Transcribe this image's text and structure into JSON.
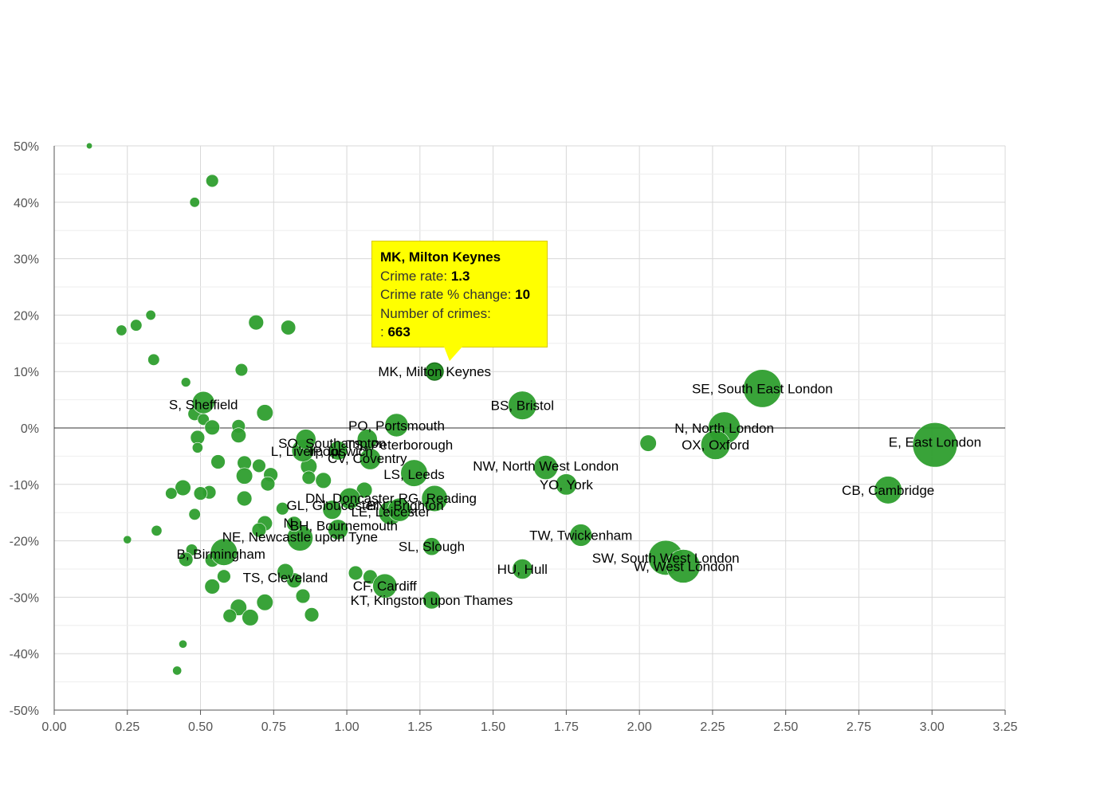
{
  "chart_data": {
    "type": "scatter",
    "variant": "bubble",
    "title": "",
    "xlabel": "",
    "ylabel": "",
    "xlim": [
      0,
      3.25
    ],
    "ylim": [
      -50,
      50
    ],
    "x_ticks": [
      "0.00",
      "0.25",
      "0.50",
      "0.75",
      "1.00",
      "1.25",
      "1.50",
      "1.75",
      "2.00",
      "2.25",
      "2.50",
      "2.75",
      "3.00",
      "3.25"
    ],
    "y_ticks": [
      "50%",
      "40%",
      "30%",
      "20%",
      "10%",
      "0%",
      "-10%",
      "-20%",
      "-30%",
      "-40%",
      "-50%"
    ],
    "grid": true,
    "point_color": "#2e9e2e",
    "highlight_color": "#1b8a1b",
    "labeled_points": [
      {
        "label": "MK, Milton Keynes",
        "x": 1.3,
        "y": 10,
        "size": 663
      },
      {
        "label": "SE, South East London",
        "x": 2.42,
        "y": 7,
        "size": 3200
      },
      {
        "label": "E, East London",
        "x": 3.01,
        "y": -3,
        "size": 4400
      },
      {
        "label": "N, North London",
        "x": 2.29,
        "y": 0,
        "size": 2300
      },
      {
        "label": "OX, Oxford",
        "x": 2.26,
        "y": -3,
        "size": 1900
      },
      {
        "label": "CB, Cambridge",
        "x": 2.85,
        "y": -11,
        "size": 1700
      },
      {
        "label": "BS, Bristol",
        "x": 1.6,
        "y": 4,
        "size": 1800
      },
      {
        "label": "NW, North West London",
        "x": 1.68,
        "y": -7,
        "size": 1300
      },
      {
        "label": "YO, York",
        "x": 1.75,
        "y": -10,
        "size": 1000
      },
      {
        "label": "TW, Twickenham",
        "x": 1.8,
        "y": -19,
        "size": 1100
      },
      {
        "label": "SW, South West London",
        "x": 2.09,
        "y": -23,
        "size": 2700
      },
      {
        "label": "W, West London",
        "x": 2.15,
        "y": -24.5,
        "size": 2500
      },
      {
        "label": "HU, Hull",
        "x": 1.6,
        "y": -25,
        "size": 900
      },
      {
        "label": "SL, Slough",
        "x": 1.29,
        "y": -21,
        "size": 700
      },
      {
        "label": "KT, Kingston upon Thames",
        "x": 1.29,
        "y": -30.5,
        "size": 700
      },
      {
        "label": "CF, Cardiff",
        "x": 1.13,
        "y": -28,
        "size": 1300
      },
      {
        "label": "TS, Cleveland",
        "x": 0.79,
        "y": -25.5,
        "size": 600
      },
      {
        "label": "B, Birmingham",
        "x": 0.58,
        "y": -22,
        "size": 1600
      },
      {
        "label": "NE, Newcastle upon Tyne",
        "x": 0.84,
        "y": -19.5,
        "size": 1500
      },
      {
        "label": "BH, Bournemouth",
        "x": 0.97,
        "y": -18,
        "size": 900
      },
      {
        "label": "N",
        "x": 0.82,
        "y": -17,
        "size": 500
      },
      {
        "label": "GL, Gloucester",
        "x": 0.95,
        "y": -14.5,
        "size": 800
      },
      {
        "label": "BN, Brighton",
        "x": 1.18,
        "y": -14.5,
        "size": 1200
      },
      {
        "label": "LE, Leicester",
        "x": 1.15,
        "y": -15,
        "size": 1300
      },
      {
        "label": "DN, Doncaster",
        "x": 1.01,
        "y": -12.5,
        "size": 1000
      },
      {
        "label": "RG, Reading",
        "x": 1.3,
        "y": -12.5,
        "size": 1500
      },
      {
        "label": "LS, Leeds",
        "x": 1.23,
        "y": -8,
        "size": 1600
      },
      {
        "label": "L, Liverpool",
        "x": 0.85,
        "y": -4,
        "size": 1100
      },
      {
        "label": "IP, Ipswich",
        "x": 0.97,
        "y": -4,
        "size": 800
      },
      {
        "label": "CV, Coventry",
        "x": 1.08,
        "y": -5.5,
        "size": 1000
      },
      {
        "label": "SO, Southampton",
        "x": 0.86,
        "y": -2,
        "size": 900
      },
      {
        "label": "TS, Peterborough",
        "x": 1.07,
        "y": -2,
        "size": 900
      },
      {
        "label": "PO, Portsmouth",
        "x": 1.17,
        "y": 0.5,
        "size": 1200
      },
      {
        "label": "S, Sheffield",
        "x": 0.51,
        "y": 4.5,
        "size": 1100
      }
    ],
    "labels": [
      {
        "text": "MK, Milton Keynes",
        "x": 1.3,
        "y": 10
      },
      {
        "text": "SE, South East London",
        "x": 2.42,
        "y": 7
      },
      {
        "text": "E, East London",
        "x": 3.01,
        "y": -2.5
      },
      {
        "text": "N, North London",
        "x": 2.29,
        "y": 0
      },
      {
        "text": "OX, Oxford",
        "x": 2.26,
        "y": -3
      },
      {
        "text": "CB, Cambridge",
        "x": 2.85,
        "y": -11
      },
      {
        "text": "BS, Bristol",
        "x": 1.6,
        "y": 4
      },
      {
        "text": "NW, North West London",
        "x": 1.68,
        "y": -6.7
      },
      {
        "text": "YO, York",
        "x": 1.75,
        "y": -10
      },
      {
        "text": "TW, Twickenham",
        "x": 1.8,
        "y": -19
      },
      {
        "text": "SW, South West London",
        "x": 2.09,
        "y": -23
      },
      {
        "text": "W, West London",
        "x": 2.15,
        "y": -24.5
      },
      {
        "text": "HU, Hull",
        "x": 1.6,
        "y": -25
      },
      {
        "text": "SL, Slough",
        "x": 1.29,
        "y": -21
      },
      {
        "text": "KT, Kingston upon Thames",
        "x": 1.29,
        "y": -30.5
      },
      {
        "text": "CF, Cardiff",
        "x": 1.13,
        "y": -28
      },
      {
        "text": "TS, Cleveland",
        "x": 0.79,
        "y": -26.5
      },
      {
        "text": "B, Birmingham",
        "x": 0.57,
        "y": -22.3
      },
      {
        "text": "NE, Newcastle upon Tyne",
        "x": 0.84,
        "y": -19.3
      },
      {
        "text": "BH, Bournemouth",
        "x": 0.99,
        "y": -17.3
      },
      {
        "text": "N",
        "x": 0.8,
        "y": -16.8
      },
      {
        "text": "GL, Gloucester",
        "x": 0.95,
        "y": -13.7
      },
      {
        "text": "BN, Brighton",
        "x": 1.2,
        "y": -13.7
      },
      {
        "text": "LE, Leicester",
        "x": 1.15,
        "y": -14.8
      },
      {
        "text": "DN, Doncaster",
        "x": 1.01,
        "y": -12.4
      },
      {
        "text": "RG, Reading",
        "x": 1.31,
        "y": -12.4
      },
      {
        "text": "LS, Leeds",
        "x": 1.23,
        "y": -8.2
      },
      {
        "text": "L, Liverpool",
        "x": 0.86,
        "y": -4.1
      },
      {
        "text": "IP, Ipswich",
        "x": 0.98,
        "y": -4.1
      },
      {
        "text": "CV, Coventry",
        "x": 1.07,
        "y": -5.4
      },
      {
        "text": "SO, Southampton",
        "x": 0.95,
        "y": -2.7
      },
      {
        "text": "TS, Peterborough",
        "x": 1.18,
        "y": -3
      },
      {
        "text": "PO, Portsmouth",
        "x": 1.17,
        "y": 0.4
      },
      {
        "text": "S, Sheffield",
        "x": 0.51,
        "y": 4.2
      }
    ],
    "other_points": [
      {
        "x": 0.12,
        "y": 50,
        "size": 80
      },
      {
        "x": 0.54,
        "y": 43.8,
        "size": 350
      },
      {
        "x": 0.48,
        "y": 40,
        "size": 220
      },
      {
        "x": 0.23,
        "y": 17.3,
        "size": 250
      },
      {
        "x": 0.28,
        "y": 18.2,
        "size": 300
      },
      {
        "x": 0.33,
        "y": 20,
        "size": 220
      },
      {
        "x": 0.69,
        "y": 18.7,
        "size": 500
      },
      {
        "x": 0.8,
        "y": 17.8,
        "size": 480
      },
      {
        "x": 0.34,
        "y": 12.1,
        "size": 300
      },
      {
        "x": 0.64,
        "y": 10.3,
        "size": 350
      },
      {
        "x": 0.45,
        "y": 8.1,
        "size": 200
      },
      {
        "x": 0.48,
        "y": 2.5,
        "size": 400
      },
      {
        "x": 0.51,
        "y": 1.5,
        "size": 300
      },
      {
        "x": 0.54,
        "y": 0.1,
        "size": 500
      },
      {
        "x": 0.63,
        "y": 0.3,
        "size": 400
      },
      {
        "x": 0.72,
        "y": 2.7,
        "size": 600
      },
      {
        "x": 0.63,
        "y": -1.3,
        "size": 500
      },
      {
        "x": 0.49,
        "y": -1.7,
        "size": 450
      },
      {
        "x": 0.49,
        "y": -3.5,
        "size": 250
      },
      {
        "x": 0.56,
        "y": -6,
        "size": 450
      },
      {
        "x": 0.65,
        "y": -6.2,
        "size": 450
      },
      {
        "x": 0.7,
        "y": -6.7,
        "size": 400
      },
      {
        "x": 0.65,
        "y": -8.5,
        "size": 600
      },
      {
        "x": 0.74,
        "y": -8.3,
        "size": 450
      },
      {
        "x": 0.73,
        "y": -9.9,
        "size": 450
      },
      {
        "x": 0.87,
        "y": -6.8,
        "size": 600
      },
      {
        "x": 0.87,
        "y": -8.8,
        "size": 400
      },
      {
        "x": 0.92,
        "y": -9.3,
        "size": 550
      },
      {
        "x": 0.44,
        "y": -10.6,
        "size": 550
      },
      {
        "x": 0.53,
        "y": -11.4,
        "size": 400
      },
      {
        "x": 0.5,
        "y": -11.6,
        "size": 400
      },
      {
        "x": 0.4,
        "y": -11.6,
        "size": 300
      },
      {
        "x": 0.65,
        "y": -12.5,
        "size": 500
      },
      {
        "x": 0.48,
        "y": -15.3,
        "size": 300
      },
      {
        "x": 0.78,
        "y": -14.3,
        "size": 350
      },
      {
        "x": 1.06,
        "y": -11,
        "size": 550
      },
      {
        "x": 0.72,
        "y": -16.9,
        "size": 500
      },
      {
        "x": 0.7,
        "y": -18.1,
        "size": 450
      },
      {
        "x": 0.35,
        "y": -18.2,
        "size": 250
      },
      {
        "x": 0.25,
        "y": -19.8,
        "size": 150
      },
      {
        "x": 0.47,
        "y": -21.6,
        "size": 300
      },
      {
        "x": 0.45,
        "y": -23.3,
        "size": 450
      },
      {
        "x": 0.54,
        "y": -23.4,
        "size": 450
      },
      {
        "x": 0.58,
        "y": -26.3,
        "size": 400
      },
      {
        "x": 0.54,
        "y": -28.1,
        "size": 500
      },
      {
        "x": 0.82,
        "y": -27,
        "size": 500
      },
      {
        "x": 0.85,
        "y": -29.8,
        "size": 450
      },
      {
        "x": 0.88,
        "y": -33.1,
        "size": 450
      },
      {
        "x": 0.72,
        "y": -30.9,
        "size": 600
      },
      {
        "x": 0.63,
        "y": -31.8,
        "size": 600
      },
      {
        "x": 0.6,
        "y": -33.3,
        "size": 400
      },
      {
        "x": 0.67,
        "y": -33.6,
        "size": 600
      },
      {
        "x": 1.03,
        "y": -25.7,
        "size": 450
      },
      {
        "x": 1.08,
        "y": -26.4,
        "size": 450
      },
      {
        "x": 2.03,
        "y": -2.7,
        "size": 600
      },
      {
        "x": 0.44,
        "y": -38.3,
        "size": 150
      },
      {
        "x": 0.42,
        "y": -43,
        "size": 180
      }
    ]
  },
  "tooltip": {
    "title": "MK, Milton Keynes",
    "rate_label": "Crime rate:",
    "rate_value": "1.3",
    "change_label": "Crime rate % change:",
    "change_value": "10",
    "count_label": "Number of crimes:",
    "count_prefix": ":",
    "count_value": "663",
    "background": "#ffff00"
  }
}
